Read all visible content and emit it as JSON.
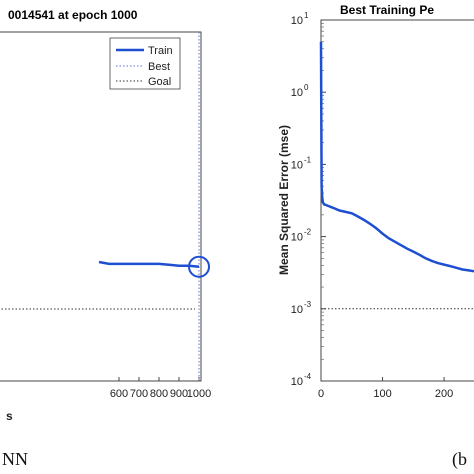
{
  "chart_data": [
    {
      "type": "line",
      "panel": "left",
      "title": "0014541 at epoch 1000",
      "xlabel": "s",
      "ylabel": "",
      "xlim": [
        -5,
        1010
      ],
      "x_ticks": [
        "600",
        "700",
        "800",
        "900",
        "1000"
      ],
      "x_tick_values": [
        600,
        700,
        800,
        900,
        1000
      ],
      "grid": false,
      "legend": "top-right",
      "legend_entries": [
        "Train",
        "Best",
        "Goal"
      ],
      "series": [
        {
          "name": "Train",
          "color": "#1f4fd1",
          "style": "solid",
          "x": [
            500,
            550,
            600,
            650,
            700,
            750,
            800,
            850,
            900,
            950,
            1000
          ],
          "y": [
            0.0015,
            0.00148,
            0.00148,
            0.00148,
            0.00148,
            0.00148,
            0.00148,
            0.00147,
            0.00146,
            0.00146,
            0.00145
          ]
        },
        {
          "name": "Goal",
          "color": "#333333",
          "style": "dotted",
          "x": [
            500,
            1000
          ],
          "y": [
            0.001,
            0.001
          ]
        }
      ],
      "best_marker": {
        "x": 1000,
        "y": 0.00145,
        "color": "#1f4fd1"
      },
      "best_epoch_line_color": "#5c6fe0",
      "caption": "NN"
    },
    {
      "type": "line",
      "panel": "right",
      "title": "Best Training Pe",
      "xlabel": "",
      "ylabel": "Mean Squared Error  (mse)",
      "yscale": "log",
      "ylim": [
        0.0001,
        10
      ],
      "y_ticks": [
        {
          "base": "10",
          "exp": "1",
          "value": 10
        },
        {
          "base": "10",
          "exp": "0",
          "value": 1
        },
        {
          "base": "10",
          "exp": "-1",
          "value": 0.1
        },
        {
          "base": "10",
          "exp": "-2",
          "value": 0.01
        },
        {
          "base": "10",
          "exp": "-3",
          "value": 0.001
        },
        {
          "base": "10",
          "exp": "-4",
          "value": 0.0001
        }
      ],
      "xlim": [
        0,
        260
      ],
      "x_ticks": [
        "0",
        "100",
        "200"
      ],
      "x_tick_values": [
        0,
        100,
        200
      ],
      "grid": false,
      "series": [
        {
          "name": "Train",
          "color": "#1f4fd1",
          "style": "solid",
          "x": [
            0,
            0.5,
            1,
            2,
            3,
            5,
            10,
            20,
            30,
            40,
            50,
            60,
            70,
            80,
            90,
            100,
            110,
            120,
            130,
            140,
            150,
            160,
            170,
            180,
            190,
            200,
            210,
            220,
            230,
            240,
            250,
            260
          ],
          "y": [
            5,
            0.5,
            0.05,
            0.035,
            0.03,
            0.028,
            0.027,
            0.025,
            0.023,
            0.022,
            0.021,
            0.019,
            0.017,
            0.015,
            0.013,
            0.011,
            0.0095,
            0.0085,
            0.0076,
            0.0068,
            0.0062,
            0.0056,
            0.005,
            0.0046,
            0.0043,
            0.0041,
            0.0039,
            0.0037,
            0.0035,
            0.0034,
            0.0033,
            0.0032
          ]
        },
        {
          "name": "Goal",
          "color": "#333333",
          "style": "dotted",
          "x": [
            0,
            260
          ],
          "y": [
            0.001,
            0.001
          ]
        }
      ],
      "caption": "(b"
    }
  ]
}
